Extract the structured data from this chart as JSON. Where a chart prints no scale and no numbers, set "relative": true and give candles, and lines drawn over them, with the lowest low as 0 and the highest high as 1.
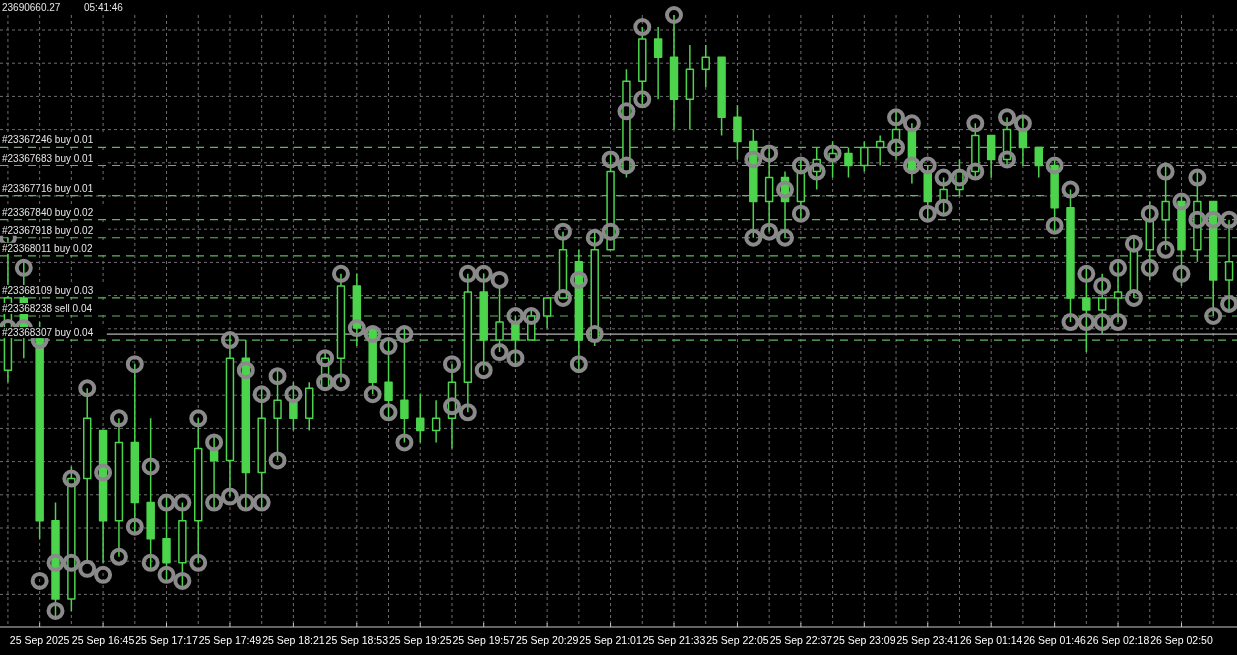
{
  "chart_data": {
    "type": "candlestick",
    "relative": true,
    "color": "#4cd44c",
    "grid": true,
    "marker": "circle",
    "annotations": [
      "23690660.27",
      "05:41:46"
    ],
    "categories": [
      null,
      null,
      "25 Sep 2025",
      null,
      null,
      null,
      "25 Sep 16:45",
      null,
      null,
      null,
      "25 Sep 17:17",
      null,
      null,
      null,
      "25 Sep 17:49",
      null,
      null,
      null,
      "25 Sep 18:21",
      null,
      null,
      null,
      "25 Sep 18:53",
      null,
      null,
      null,
      "25 Sep 19:25",
      null,
      null,
      null,
      "25 Sep 19:57",
      null,
      null,
      null,
      "25 Sep 20:29",
      null,
      null,
      null,
      "25 Sep 21:01",
      null,
      null,
      null,
      "25 Sep 21:33",
      null,
      null,
      null,
      "25 Sep 22:05",
      null,
      null,
      null,
      "25 Sep 22:37",
      null,
      null,
      null,
      "25 Sep 23:09",
      null,
      null,
      null,
      "25 Sep 23:41",
      null,
      null,
      null,
      "26 Sep 01:14",
      null,
      null,
      null,
      "26 Sep 01:46",
      null,
      null,
      null,
      "26 Sep 02:18",
      null,
      null,
      null,
      "26 Sep 02:50",
      null,
      null,
      null
    ],
    "ohlc": [
      [
        0.41,
        0.63,
        0.39,
        0.53
      ],
      [
        0.53,
        0.59,
        0.43,
        0.48
      ],
      [
        0.48,
        0.49,
        0.13,
        0.16
      ],
      [
        0.16,
        0.19,
        0,
        0.03
      ],
      [
        0.03,
        0.25,
        0.01,
        0.23
      ],
      [
        0.23,
        0.38,
        0.09,
        0.33
      ],
      [
        0.31,
        0.31,
        0.09,
        0.16
      ],
      [
        0.16,
        0.33,
        0.1,
        0.29
      ],
      [
        0.29,
        0.42,
        0.14,
        0.19
      ],
      [
        0.19,
        0.33,
        0.08,
        0.13
      ],
      [
        0.13,
        0.2,
        0.06,
        0.09
      ],
      [
        0.09,
        0.19,
        0.05,
        0.16
      ],
      [
        0.16,
        0.33,
        0.09,
        0.28
      ],
      [
        0.28,
        0.3,
        0.18,
        0.26
      ],
      [
        0.26,
        0.47,
        0.2,
        0.43
      ],
      [
        0.43,
        0.46,
        0.18,
        0.24
      ],
      [
        0.24,
        0.38,
        0.18,
        0.33
      ],
      [
        0.33,
        0.41,
        0.26,
        0.36
      ],
      [
        0.36,
        0.39,
        0.31,
        0.33
      ],
      [
        0.33,
        0.39,
        0.31,
        0.38
      ],
      [
        0.38,
        0.44,
        0.38,
        0.43
      ],
      [
        0.43,
        0.57,
        0.39,
        0.55
      ],
      [
        0.55,
        0.57,
        0.45,
        0.48
      ],
      [
        0.48,
        0.48,
        0.37,
        0.39
      ],
      [
        0.39,
        0.46,
        0.33,
        0.36
      ],
      [
        0.36,
        0.48,
        0.29,
        0.33
      ],
      [
        0.33,
        0.37,
        0.29,
        0.31
      ],
      [
        0.31,
        0.36,
        0.29,
        0.33
      ],
      [
        0.33,
        0.42,
        0.28,
        0.39
      ],
      [
        0.39,
        0.57,
        0.34,
        0.54
      ],
      [
        0.54,
        0.57,
        0.41,
        0.46
      ],
      [
        0.46,
        0.55,
        0.44,
        0.49
      ],
      [
        0.49,
        0.5,
        0.42,
        0.46
      ],
      [
        0.46,
        0.51,
        0.46,
        0.5
      ],
      [
        0.5,
        0.53,
        0.48,
        0.53
      ],
      [
        0.53,
        0.64,
        0.53,
        0.61
      ],
      [
        0.59,
        0.61,
        0.41,
        0.46
      ],
      [
        0.46,
        0.64,
        0.45,
        0.61
      ],
      [
        0.61,
        0.77,
        0.61,
        0.74
      ],
      [
        0.74,
        0.91,
        0.73,
        0.89
      ],
      [
        0.89,
        0.98,
        0.85,
        0.96
      ],
      [
        0.96,
        0.98,
        0.86,
        0.93
      ],
      [
        0.93,
        1,
        0.81,
        0.86
      ],
      [
        0.86,
        0.95,
        0.81,
        0.91
      ],
      [
        0.91,
        0.95,
        0.88,
        0.93
      ],
      [
        0.93,
        0.93,
        0.8,
        0.83
      ],
      [
        0.83,
        0.85,
        0.76,
        0.79
      ],
      [
        0.79,
        0.81,
        0.63,
        0.69
      ],
      [
        0.69,
        0.78,
        0.64,
        0.73
      ],
      [
        0.73,
        0.74,
        0.63,
        0.69
      ],
      [
        0.69,
        0.76,
        0.66,
        0.74
      ],
      [
        0.74,
        0.78,
        0.71,
        0.76
      ],
      [
        0.76,
        0.79,
        0.73,
        0.77
      ],
      [
        0.77,
        0.78,
        0.73,
        0.75
      ],
      [
        0.75,
        0.79,
        0.74,
        0.78
      ],
      [
        0.78,
        0.8,
        0.75,
        0.79
      ],
      [
        0.79,
        0.84,
        0.76,
        0.81
      ],
      [
        0.81,
        0.82,
        0.72,
        0.74
      ],
      [
        0.74,
        0.75,
        0.66,
        0.69
      ],
      [
        0.69,
        0.73,
        0.67,
        0.71
      ],
      [
        0.71,
        0.76,
        0.7,
        0.74
      ],
      [
        0.74,
        0.82,
        0.73,
        0.8
      ],
      [
        0.8,
        0.8,
        0.73,
        0.76
      ],
      [
        0.76,
        0.83,
        0.75,
        0.81
      ],
      [
        0.81,
        0.83,
        0.75,
        0.78
      ],
      [
        0.78,
        0.78,
        0.73,
        0.75
      ],
      [
        0.75,
        0.76,
        0.64,
        0.68
      ],
      [
        0.68,
        0.71,
        0.49,
        0.53
      ],
      [
        0.53,
        0.58,
        0.44,
        0.51
      ],
      [
        0.51,
        0.57,
        0.47,
        0.53
      ],
      [
        0.53,
        0.59,
        0.49,
        0.54
      ],
      [
        0.54,
        0.63,
        0.53,
        0.61
      ],
      [
        0.61,
        0.69,
        0.56,
        0.66
      ],
      [
        0.66,
        0.75,
        0.61,
        0.69
      ],
      [
        0.69,
        0.7,
        0.55,
        0.61
      ],
      [
        0.61,
        0.74,
        0.59,
        0.69
      ],
      [
        0.69,
        0.69,
        0.5,
        0.56
      ],
      [
        0.56,
        0.66,
        0.51,
        0.59
      ]
    ],
    "series": [
      {
        "type": "scatter",
        "color": "#8a8a8a",
        "values": [
          0.63,
          0.58,
          0.46,
          0.09,
          0.23,
          0.38,
          0.24,
          0.33,
          0.42,
          0.25,
          0.19,
          0.19,
          0.33,
          0.29,
          0.46,
          0.41,
          0.37,
          0.4,
          0.37,
          null,
          0.43,
          0.57,
          0.48,
          0.47,
          0.45,
          0.47,
          null,
          null,
          0.42,
          0.57,
          0.57,
          0.56,
          0.5,
          0.5,
          null,
          0.64,
          0.56,
          0.63,
          0.76,
          0.84,
          0.98,
          null,
          1,
          null,
          null,
          null,
          null,
          0.76,
          0.77,
          0.71,
          0.75,
          0.74,
          0.77,
          null,
          null,
          null,
          0.83,
          0.82,
          0.75,
          0.73,
          0.73,
          0.82,
          null,
          0.83,
          0.82,
          null,
          0.75,
          0.71,
          0.57,
          0.55,
          0.58,
          0.62,
          0.67,
          0.74,
          0.69,
          0.73,
          0.66,
          0.66
        ]
      },
      {
        "type": "scatter",
        "color": "#8a8a8a",
        "values": [
          0.48,
          0.48,
          0.06,
          0.01,
          0.09,
          0.08,
          0.07,
          0.1,
          0.15,
          0.09,
          0.07,
          0.06,
          0.09,
          0.19,
          0.2,
          0.19,
          0.19,
          0.26,
          null,
          null,
          0.39,
          0.39,
          null,
          0.37,
          0.34,
          0.29,
          null,
          null,
          0.35,
          0.34,
          0.41,
          0.44,
          0.43,
          null,
          null,
          0.53,
          0.42,
          0.47,
          0.64,
          0.75,
          0.86,
          null,
          null,
          null,
          null,
          null,
          null,
          0.63,
          0.64,
          0.63,
          0.67,
          null,
          null,
          null,
          null,
          null,
          0.78,
          0.75,
          0.67,
          0.68,
          null,
          0.74,
          null,
          0.76,
          null,
          null,
          0.65,
          0.49,
          0.49,
          0.49,
          0.49,
          0.53,
          0.58,
          0.61,
          0.57,
          0.66,
          0.5,
          0.52
        ]
      }
    ],
    "ref_lines": [
      {
        "axis": "y",
        "value": 0.78,
        "label": "#23367246 buy 0.01",
        "color": "#5cb85c",
        "line_style": "dashed"
      },
      {
        "axis": "y",
        "value": 0.75,
        "label": "#23367683 buy 0.01",
        "color": "#5cb85c",
        "line_style": "dashed"
      },
      {
        "axis": "y",
        "value": 0.7,
        "label": "#23367716 buy 0.01",
        "color": "#5cb85c",
        "line_style": "dashed"
      },
      {
        "axis": "y",
        "value": 0.66,
        "label": "#23367840 buy 0.02",
        "color": "#5cb85c",
        "line_style": "dashed"
      },
      {
        "axis": "y",
        "value": 0.63,
        "label": "#23367918 buy 0.02",
        "color": "#5cb85c",
        "line_style": "dashed"
      },
      {
        "axis": "y",
        "value": 0.6,
        "label": "#23368011 buy 0.02",
        "color": "#5cb85c",
        "line_style": "dashed"
      },
      {
        "axis": "y",
        "value": 0.53,
        "label": "#23368109 buy 0.03",
        "color": "#5cb85c",
        "line_style": "dashed"
      },
      {
        "axis": "y",
        "value": 0.5,
        "label": "#23368238 sell 0.04",
        "color": "#5cb85c",
        "line_style": "dashed"
      },
      {
        "axis": "y",
        "value": 0.47,
        "color": "#b4b4b4",
        "line_style": "solid"
      },
      {
        "axis": "y",
        "value": 0.46,
        "label": "#23368307 buy 0.04",
        "color": "#5cb85c",
        "line_style": "dashed"
      }
    ]
  }
}
